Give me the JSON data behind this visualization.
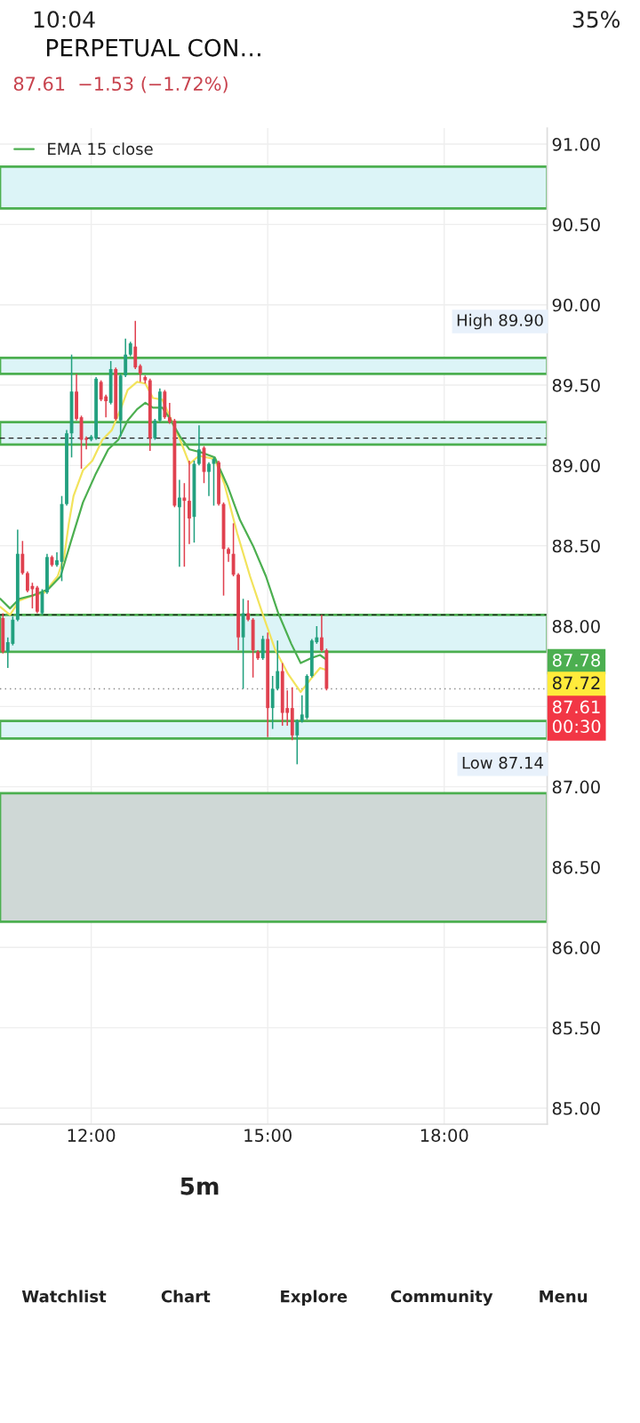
{
  "chart_data": {
    "type": "candlestick",
    "title": "PERPETUAL CON…",
    "subtitle": "87.61  −1.53 (−1.72%)",
    "x": [
      10.5,
      10.583,
      10.667,
      10.75,
      10.833,
      10.917,
      11,
      11.083,
      11.167,
      11.25,
      11.333,
      11.417,
      11.5,
      11.583,
      11.667,
      11.75,
      11.833,
      11.917,
      12,
      12.083,
      12.167,
      12.25,
      12.333,
      12.417,
      12.5,
      12.583,
      12.667,
      12.75,
      12.833,
      12.917,
      13,
      13.083,
      13.167,
      13.25,
      13.333,
      13.417,
      13.5,
      13.583,
      13.667,
      13.75,
      13.833,
      13.917,
      14,
      14.083,
      14.167,
      14.25,
      14.333,
      14.417,
      14.5,
      14.583,
      14.667,
      14.75,
      14.833,
      14.917,
      15,
      15.083,
      15.167,
      15.25,
      15.333,
      15.417,
      15.5,
      15.583,
      15.667,
      15.75,
      15.833,
      15.917,
      16
    ],
    "ohlc": [
      [
        88.05,
        88.08,
        87.83,
        87.84
      ],
      [
        87.84,
        87.93,
        87.74,
        87.9
      ],
      [
        87.89,
        88.06,
        87.88,
        88.04
      ],
      [
        88.04,
        88.6,
        88.03,
        88.45
      ],
      [
        88.45,
        88.53,
        88.32,
        88.33
      ],
      [
        88.33,
        88.34,
        88.21,
        88.22
      ],
      [
        88.25,
        88.27,
        88.11,
        88.23
      ],
      [
        88.24,
        88.25,
        88.08,
        88.09
      ],
      [
        88.08,
        88.23,
        88.07,
        88.21
      ],
      [
        88.21,
        88.45,
        88.2,
        88.43
      ],
      [
        88.43,
        88.44,
        88.37,
        88.38
      ],
      [
        88.38,
        88.46,
        88.37,
        88.41
      ],
      [
        88.4,
        88.81,
        88.28,
        88.76
      ],
      [
        88.76,
        89.22,
        88.75,
        89.2
      ],
      [
        89.2,
        89.69,
        89.05,
        89.46
      ],
      [
        89.46,
        89.57,
        89.28,
        89.29
      ],
      [
        89.3,
        89.31,
        88.98,
        89.16
      ],
      [
        89.17,
        89.18,
        89.1,
        89.16
      ],
      [
        89.16,
        89.19,
        89.15,
        89.18
      ],
      [
        89.17,
        89.55,
        89.16,
        89.54
      ],
      [
        89.52,
        89.53,
        89.4,
        89.41
      ],
      [
        89.43,
        89.44,
        89.3,
        89.4
      ],
      [
        89.39,
        89.65,
        89.38,
        89.6
      ],
      [
        89.6,
        89.61,
        89.28,
        89.29
      ],
      [
        89.28,
        89.57,
        89.18,
        89.56
      ],
      [
        89.56,
        89.79,
        89.55,
        89.69
      ],
      [
        89.69,
        89.77,
        89.68,
        89.76
      ],
      [
        89.74,
        89.9,
        89.6,
        89.61
      ],
      [
        89.62,
        89.63,
        89.52,
        89.57
      ],
      [
        89.55,
        89.56,
        89.51,
        89.53
      ],
      [
        89.53,
        89.54,
        89.09,
        89.17
      ],
      [
        89.17,
        89.29,
        89.16,
        89.28
      ],
      [
        89.28,
        89.48,
        89.27,
        89.46
      ],
      [
        89.46,
        89.47,
        89.29,
        89.3
      ],
      [
        89.3,
        89.39,
        89.26,
        89.27
      ],
      [
        89.28,
        89.29,
        88.74,
        88.75
      ],
      [
        88.74,
        88.91,
        88.37,
        88.8
      ],
      [
        88.8,
        88.89,
        88.37,
        88.78
      ],
      [
        88.78,
        89.03,
        88.51,
        88.67
      ],
      [
        88.68,
        89.03,
        88.52,
        89.01
      ],
      [
        89.01,
        89.25,
        89.0,
        89.1
      ],
      [
        89.11,
        89.12,
        88.89,
        88.96
      ],
      [
        88.96,
        89.02,
        88.81,
        89.01
      ],
      [
        89.01,
        89.05,
        88.75,
        89.04
      ],
      [
        89.02,
        89.03,
        88.75,
        88.76
      ],
      [
        88.76,
        88.77,
        88.19,
        88.48
      ],
      [
        88.48,
        88.49,
        88.4,
        88.45
      ],
      [
        88.45,
        88.64,
        88.31,
        88.32
      ],
      [
        88.32,
        88.33,
        87.85,
        87.93
      ],
      [
        87.93,
        88.17,
        87.61,
        88.08
      ],
      [
        88.08,
        88.16,
        88.03,
        88.04
      ],
      [
        88.04,
        88.05,
        87.68,
        87.85
      ],
      [
        87.84,
        87.85,
        87.79,
        87.8
      ],
      [
        87.8,
        87.94,
        87.79,
        87.92
      ],
      [
        87.92,
        87.96,
        87.31,
        87.49
      ],
      [
        87.49,
        87.69,
        87.36,
        87.61
      ],
      [
        87.61,
        87.91,
        87.6,
        87.72
      ],
      [
        87.72,
        87.77,
        87.38,
        87.46
      ],
      [
        87.49,
        87.6,
        87.38,
        87.46
      ],
      [
        87.49,
        87.62,
        87.29,
        87.32
      ],
      [
        87.32,
        87.42,
        87.14,
        87.41
      ],
      [
        87.41,
        87.57,
        87.4,
        87.45
      ],
      [
        87.43,
        87.7,
        87.42,
        87.69
      ],
      [
        87.69,
        87.92,
        87.68,
        87.91
      ],
      [
        87.9,
        88.0,
        87.89,
        87.93
      ],
      [
        87.93,
        88.07,
        87.84,
        87.85
      ],
      [
        87.85,
        87.86,
        87.6,
        87.61
      ]
    ],
    "series": [
      {
        "type": "line",
        "color": "#f2e35c",
        "x": [
          10.455,
          10.62,
          10.78,
          11.0,
          11.21,
          11.43,
          11.54,
          11.62,
          11.7,
          11.86,
          12.02,
          12.19,
          12.35,
          12.51,
          12.62,
          12.78,
          12.92,
          13.05,
          13.21,
          13.34,
          13.51,
          13.67,
          13.83,
          14.1,
          14.26,
          14.48,
          14.7,
          14.91,
          15.13,
          15.35,
          15.56,
          15.73,
          15.89,
          15.97
        ],
        "values": [
          88.12,
          88.07,
          88.16,
          88.19,
          88.21,
          88.31,
          88.43,
          88.64,
          88.81,
          88.97,
          89.03,
          89.16,
          89.22,
          89.36,
          89.47,
          89.52,
          89.51,
          89.42,
          89.41,
          89.3,
          89.16,
          89.01,
          89.06,
          89.04,
          88.89,
          88.58,
          88.31,
          88.08,
          87.85,
          87.7,
          87.59,
          87.67,
          87.74,
          87.73
        ]
      },
      {
        "type": "line",
        "name": "EMA 15 close",
        "color": "#4caf50",
        "x": [
          10.455,
          10.62,
          10.78,
          11.0,
          11.27,
          11.48,
          11.65,
          11.86,
          12.08,
          12.29,
          12.46,
          12.62,
          12.78,
          12.92,
          13.05,
          13.21,
          13.34,
          13.51,
          13.67,
          13.88,
          14.1,
          14.32,
          14.53,
          14.75,
          14.97,
          15.18,
          15.4,
          15.56,
          15.73,
          15.89,
          16.0
        ],
        "values": [
          88.17,
          88.11,
          88.17,
          88.19,
          88.23,
          88.31,
          88.52,
          88.77,
          88.95,
          89.1,
          89.16,
          89.28,
          89.35,
          89.39,
          89.36,
          89.36,
          89.29,
          89.18,
          89.1,
          89.08,
          89.05,
          88.87,
          88.66,
          88.5,
          88.31,
          88.08,
          87.89,
          87.77,
          87.8,
          87.82,
          87.79
        ]
      }
    ],
    "xlim": [
      10.45,
      19.75
    ],
    "ylim": [
      84.9,
      91.1
    ],
    "xticks": [
      {
        "value": 12,
        "label": "12:00"
      },
      {
        "value": 15,
        "label": "15:00"
      },
      {
        "value": 18,
        "label": "18:00"
      }
    ],
    "yticks": [
      {
        "value": 85,
        "label": "85.00"
      },
      {
        "value": 85.5,
        "label": "85.50"
      },
      {
        "value": 86,
        "label": "86.00"
      },
      {
        "value": 86.5,
        "label": "86.50"
      },
      {
        "value": 87,
        "label": "87.00"
      },
      {
        "value": 87.5,
        "label": null
      },
      {
        "value": 88,
        "label": "88.00"
      },
      {
        "value": 88.5,
        "label": "88.50"
      },
      {
        "value": 89,
        "label": "89.00"
      },
      {
        "value": 89.5,
        "label": "89.50"
      },
      {
        "value": 90,
        "label": "90.00"
      },
      {
        "value": 90.5,
        "label": "90.50"
      },
      {
        "value": 91,
        "label": "91.00"
      }
    ],
    "grid": true,
    "legend": "top left",
    "bands": [
      {
        "axis": "y",
        "from": 90.6,
        "to": 90.86,
        "color": "#dcf4f7"
      },
      {
        "axis": "y",
        "from": 89.57,
        "to": 89.67,
        "color": "#dcf4f7"
      },
      {
        "axis": "y",
        "from": 89.13,
        "to": 89.27,
        "color": "#dcf4f7"
      },
      {
        "axis": "y",
        "from": 87.84,
        "to": 88.07,
        "color": "#dcf4f7"
      },
      {
        "axis": "y",
        "from": 87.3,
        "to": 87.41,
        "color": "#dcf4f7"
      },
      {
        "axis": "y",
        "from": 86.16,
        "to": 86.96,
        "color": "#cfd8d6"
      }
    ],
    "ref_lines": [
      {
        "axis": "y",
        "value": 89.17,
        "line_style": "dashed",
        "color": "#222222"
      },
      {
        "axis": "y",
        "value": 88.07,
        "line_style": "dashed",
        "color": "#222222"
      },
      {
        "axis": "y",
        "value": 87.61,
        "line_style": "dotted",
        "color": "#888888"
      }
    ],
    "annotations": [
      "High 89.90",
      "Low 87.14",
      "87.78",
      "87.72",
      "87.61\n00:30",
      "10:04",
      "35%",
      "5m",
      "Watchlist",
      "Chart",
      "Explore",
      "Community",
      "Menu"
    ]
  }
}
